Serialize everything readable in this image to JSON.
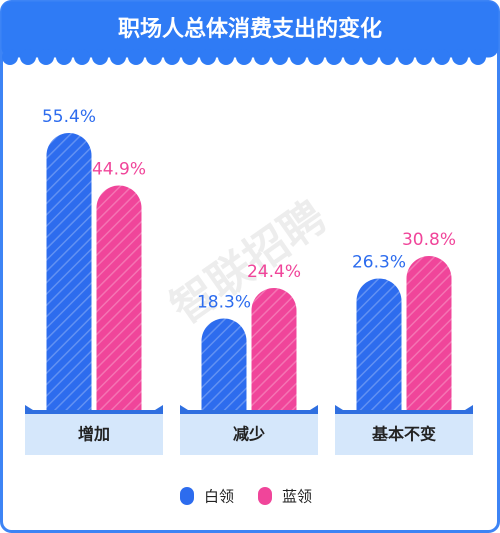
{
  "chart_data": {
    "type": "bar",
    "title": "职场人总体消费支出的变化",
    "categories": [
      "增加",
      "减少",
      "基本不变"
    ],
    "series": [
      {
        "name": "白领",
        "color": "#2d6cee",
        "values": [
          55.4,
          18.3,
          26.3
        ],
        "value_labels": [
          "55.4%",
          "18.3%",
          "26.3%"
        ]
      },
      {
        "name": "蓝领",
        "color": "#f0459a",
        "values": [
          44.9,
          24.4,
          30.8
        ],
        "value_labels": [
          "44.9%",
          "24.4%",
          "30.8%"
        ]
      }
    ]
  },
  "watermark": "智联招聘"
}
